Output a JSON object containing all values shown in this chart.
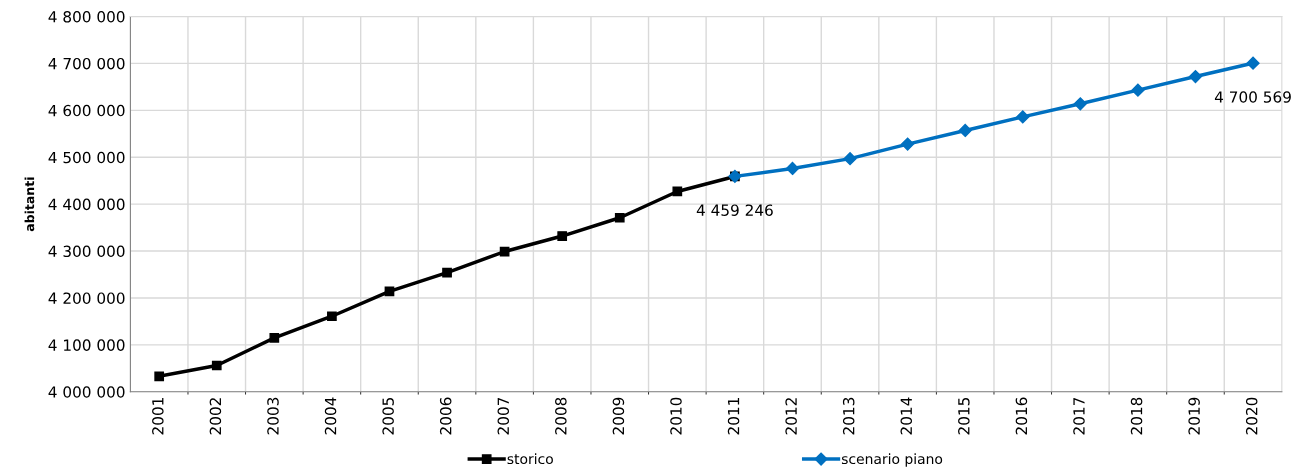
{
  "chart_data": {
    "type": "line",
    "ylabel": "abitanti",
    "categories": [
      "2001",
      "2002",
      "2003",
      "2004",
      "2005",
      "2006",
      "2007",
      "2008",
      "2009",
      "2010",
      "2011",
      "2012",
      "2013",
      "2014",
      "2015",
      "2016",
      "2017",
      "2018",
      "2019",
      "2020"
    ],
    "series": [
      {
        "name": "storico",
        "color": "#000000",
        "marker": "square",
        "values": [
          4033000,
          4056000,
          4115000,
          4161000,
          4214000,
          4254000,
          4299000,
          4332000,
          4371000,
          4427000,
          4459000,
          null,
          null,
          null,
          null,
          null,
          null,
          null,
          null,
          null
        ]
      },
      {
        "name": "scenario piano",
        "color": "#0070c0",
        "marker": "diamond",
        "values": [
          null,
          null,
          null,
          null,
          null,
          null,
          null,
          null,
          null,
          null,
          4459246,
          4476000,
          4497000,
          4528000,
          4557000,
          4586000,
          4614000,
          4643000,
          4672000,
          4700569
        ],
        "value_labels": [
          null,
          null,
          null,
          null,
          null,
          null,
          null,
          null,
          null,
          null,
          "4 459 246",
          null,
          null,
          null,
          null,
          null,
          null,
          null,
          null,
          "4 700 569"
        ]
      }
    ],
    "ylim": [
      4000000,
      4800000
    ],
    "yticks": [
      {
        "value": 4000000,
        "label": "4 000 000"
      },
      {
        "value": 4100000,
        "label": "4 100 000"
      },
      {
        "value": 4200000,
        "label": "4 200 000"
      },
      {
        "value": 4300000,
        "label": "4 300 000"
      },
      {
        "value": 4400000,
        "label": "4 400 000"
      },
      {
        "value": 4500000,
        "label": "4 500 000"
      },
      {
        "value": 4600000,
        "label": "4 600 000"
      },
      {
        "value": 4700000,
        "label": "4 700 000"
      },
      {
        "value": 4800000,
        "label": "4 800 000"
      }
    ],
    "grid": true,
    "legend": "bottom",
    "line_style": "solid"
  }
}
